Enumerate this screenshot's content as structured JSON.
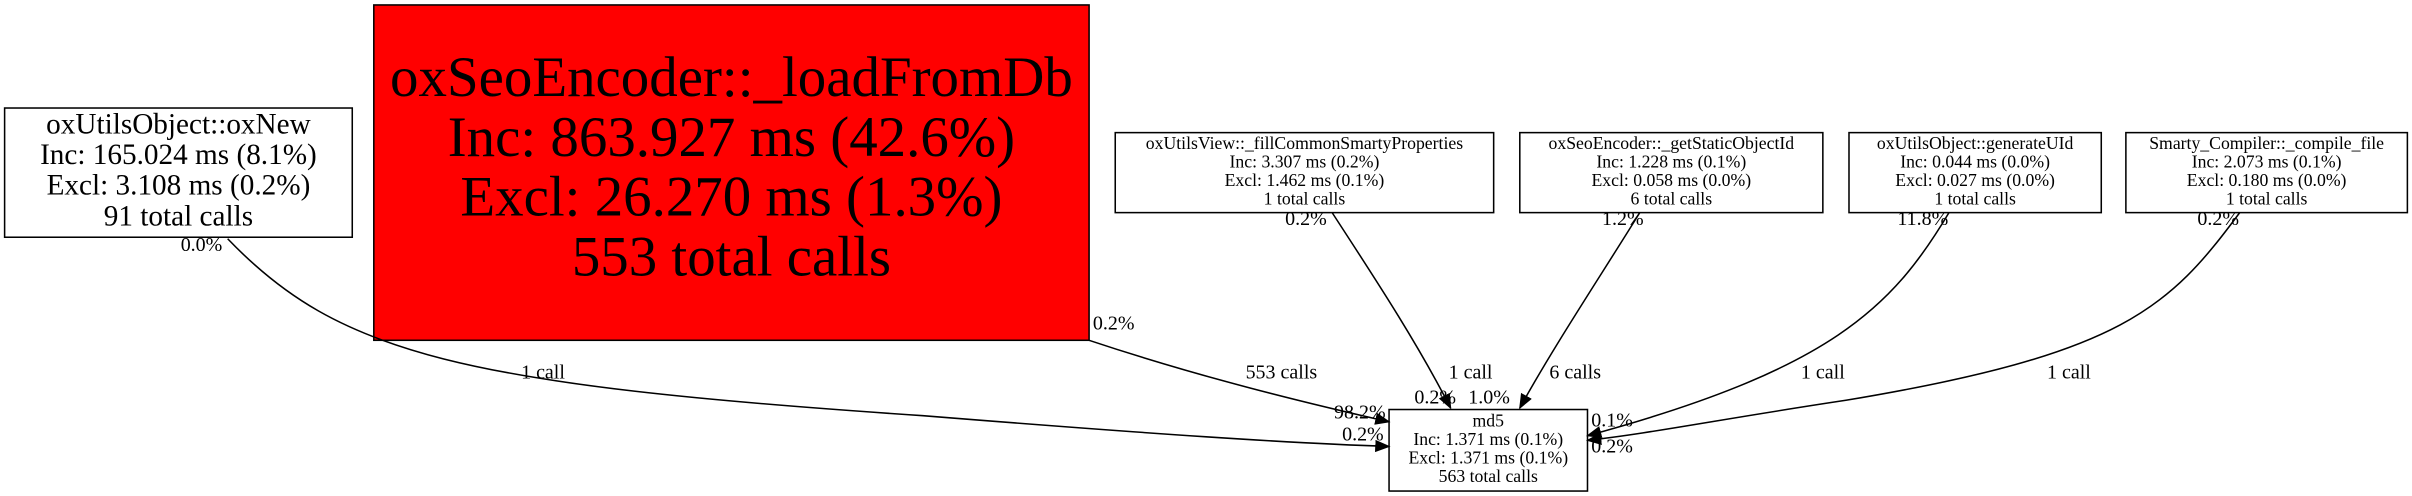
{
  "nodes": [
    {
      "lines": [
        "oxUtilsObject::oxNew",
        "Inc: 165.024 ms (8.1%)",
        "Excl: 3.108 ms (0.2%)",
        "91 total calls"
      ]
    },
    {
      "lines": [
        "oxSeoEncoder::_loadFromDb",
        "Inc: 863.927 ms (42.6%)",
        "Excl: 26.270 ms (1.3%)",
        "553 total calls"
      ]
    },
    {
      "lines": [
        "oxUtilsView::_fillCommonSmartyProperties",
        "Inc: 3.307 ms (0.2%)",
        "Excl: 1.462 ms (0.1%)",
        "1 total calls"
      ]
    },
    {
      "lines": [
        "oxSeoEncoder::_getStaticObjectId",
        "Inc: 1.228 ms (0.1%)",
        "Excl: 0.058 ms (0.0%)",
        "6 total calls"
      ]
    },
    {
      "lines": [
        "oxUtilsObject::generateUId",
        "Inc: 0.044 ms (0.0%)",
        "Excl: 0.027 ms (0.0%)",
        "1 total calls"
      ]
    },
    {
      "lines": [
        "Smarty_Compiler::_compile_file",
        "Inc: 2.073 ms (0.1%)",
        "Excl: 0.180 ms (0.0%)",
        "1 total calls"
      ]
    },
    {
      "lines": [
        "md5",
        "Inc: 1.371 ms (0.1%)",
        "Excl: 1.371 ms (0.1%)",
        "563 total calls"
      ]
    }
  ],
  "edges": [
    {
      "label": "1 call",
      "tail_label": "0.0%",
      "head_label": "0.2%"
    },
    {
      "label": "553 calls",
      "tail_label": "0.2%",
      "head_label": "98.2%"
    },
    {
      "label": "1 call",
      "tail_label": "0.2%",
      "head_label": "0.2%"
    },
    {
      "label": "6 calls",
      "tail_label": "1.2%",
      "head_label": "1.0%"
    },
    {
      "label": "1 call",
      "tail_label": "11.8%",
      "head_label": "0.1%"
    },
    {
      "label": "1 call",
      "tail_label": "0.2%",
      "head_label": "0.2%"
    }
  ]
}
